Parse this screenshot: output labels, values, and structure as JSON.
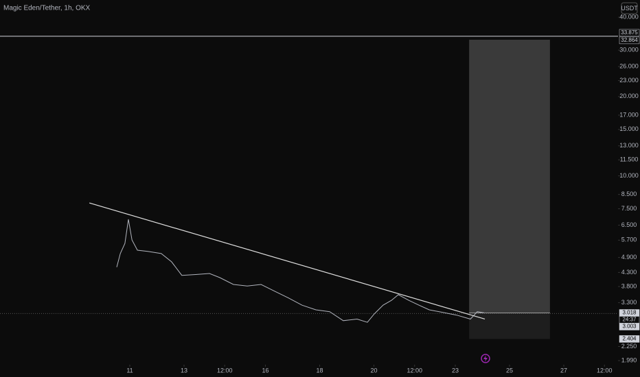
{
  "chart_data": {
    "type": "line",
    "title": "Magic Eden/Tether, 1h, OKX",
    "currency": "USDT",
    "ylog": true,
    "xlim": [
      6.215,
      29.0
    ],
    "xticks": [
      {
        "value": 11,
        "label": "11"
      },
      {
        "value": 13,
        "label": "13"
      },
      {
        "value": 14.5,
        "label": "12:00"
      },
      {
        "value": 16,
        "label": "16"
      },
      {
        "value": 18,
        "label": "18"
      },
      {
        "value": 20,
        "label": "20"
      },
      {
        "value": 21.5,
        "label": "12:00"
      },
      {
        "value": 23,
        "label": "23"
      },
      {
        "value": 25,
        "label": "25"
      },
      {
        "value": 27,
        "label": "27"
      },
      {
        "value": 28.5,
        "label": "12:00"
      }
    ],
    "ylim": [
      1.92,
      46.5
    ],
    "yticks": [
      {
        "value": 40,
        "label": "40.000"
      },
      {
        "value": 30,
        "label": "30.000"
      },
      {
        "value": 26,
        "label": "26.000"
      },
      {
        "value": 23,
        "label": "23.000"
      },
      {
        "value": 20,
        "label": "20.000"
      },
      {
        "value": 17,
        "label": "17.000"
      },
      {
        "value": 15,
        "label": "15.000"
      },
      {
        "value": 13,
        "label": "13.000"
      },
      {
        "value": 11.5,
        "label": "11.500"
      },
      {
        "value": 10,
        "label": "10.000"
      },
      {
        "value": 8.5,
        "label": "8.500"
      },
      {
        "value": 7.5,
        "label": "7.500"
      },
      {
        "value": 6.5,
        "label": "6.500"
      },
      {
        "value": 5.7,
        "label": "5.700"
      },
      {
        "value": 4.9,
        "label": "4.900"
      },
      {
        "value": 4.3,
        "label": "4.300"
      },
      {
        "value": 3.8,
        "label": "3.800"
      },
      {
        "value": 3.3,
        "label": "3.300"
      },
      {
        "value": 2.25,
        "label": "2.250"
      },
      {
        "value": 1.99,
        "label": "1.990"
      }
    ],
    "series": [
      {
        "color": "#b2b5be",
        "x": [
          10.52,
          10.65,
          10.82,
          10.95,
          11.08,
          11.28,
          11.66,
          12.16,
          12.54,
          12.92,
          13.43,
          13.94,
          14.32,
          14.82,
          15.33,
          15.84,
          16.34,
          16.85,
          17.35,
          17.86,
          18.37,
          18.87,
          19.38,
          19.76,
          20.01,
          20.34,
          20.65,
          20.9,
          21.28,
          21.66,
          22.04,
          22.54,
          23.05,
          23.56,
          23.81,
          24.06
        ],
        "values": [
          4.5,
          5.07,
          5.54,
          6.84,
          5.71,
          5.22,
          5.17,
          5.07,
          4.72,
          4.19,
          4.22,
          4.26,
          4.11,
          3.87,
          3.82,
          3.87,
          3.65,
          3.44,
          3.23,
          3.1,
          3.05,
          2.82,
          2.86,
          2.78,
          2.99,
          3.23,
          3.37,
          3.54,
          3.37,
          3.23,
          3.1,
          3.03,
          2.96,
          2.86,
          3.05,
          3.02
        ]
      }
    ],
    "trendline": {
      "x": [
        9.51,
        24.09
      ],
      "values": [
        7.89,
        2.86
      ]
    },
    "hline": 33.875,
    "position": {
      "x": [
        23.51,
        26.49
      ],
      "target": 32.864,
      "entry": 3.018,
      "stop": 2.404
    },
    "last_price": 3.003,
    "countdown": "24:37"
  }
}
